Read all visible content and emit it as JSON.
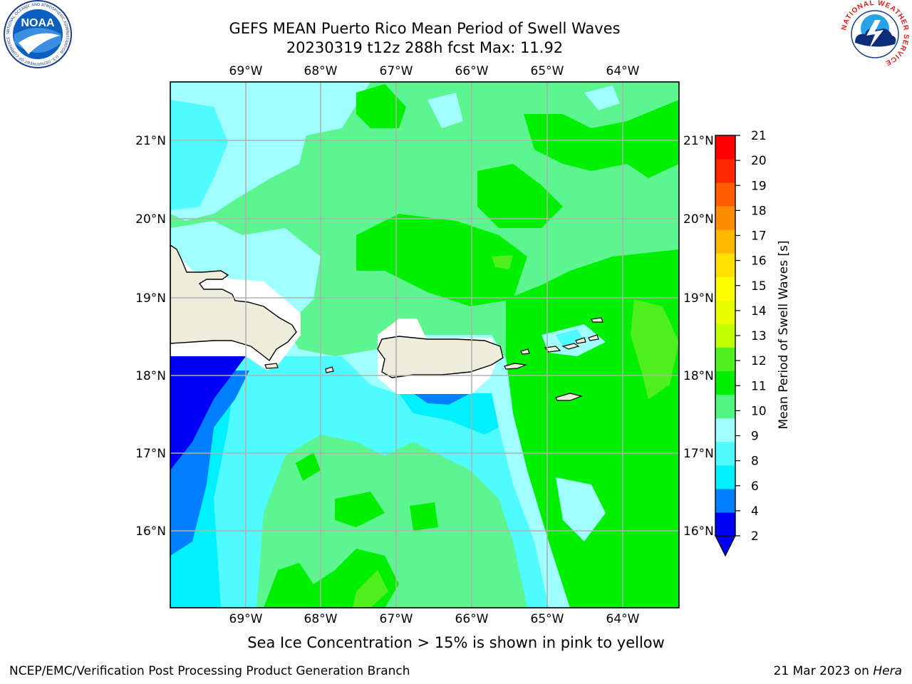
{
  "header": {
    "title_line1": "GEFS MEAN Puerto Rico Mean Period of Swell Waves",
    "title_line2": "20230319 t12z 288h fcst   Max: 11.92"
  },
  "logos": {
    "noaa_text": "NOAA",
    "noaa_ring": "NATIONAL OCEANIC AND ATMOSPHERIC ADMINISTRATION · U.S. DEPARTMENT OF COMMERCE",
    "nws_ring": "NATIONAL WEATHER SERVICE"
  },
  "map": {
    "lon_labels": [
      "69°W",
      "68°W",
      "67°W",
      "66°W",
      "65°W",
      "64°W"
    ],
    "lat_labels": [
      "21°N",
      "20°N",
      "19°N",
      "18°N",
      "17°N",
      "16°N"
    ],
    "colors": {
      "land": "#eeeddc",
      "coast": "#000000",
      "grid": "#b0b0b0",
      "ocean_base": "#5cf590"
    }
  },
  "colorbar": {
    "label": "Mean Period of Swell Waves [s]",
    "levels": [
      "2",
      "4",
      "6",
      "8",
      "9",
      "10",
      "11",
      "12",
      "13",
      "14",
      "15",
      "16",
      "17",
      "18",
      "19",
      "20",
      "21"
    ],
    "colors": [
      "#0000f5",
      "#0080ff",
      "#00f0ff",
      "#50fbff",
      "#a0ffff",
      "#50f580",
      "#00f000",
      "#50f020",
      "#c0ff00",
      "#e8ff00",
      "#ffff00",
      "#ffe000",
      "#ffb800",
      "#ff8c00",
      "#ff5c00",
      "#ff2800",
      "#ff0000"
    ],
    "extend_color": "#0000f5"
  },
  "caption": "Sea Ice Concentration > 15% is shown in pink to yellow",
  "footer": {
    "left": "NCEP/EMC/Verification Post Processing Product Generation Branch",
    "right_prefix": "21 Mar 2023 on ",
    "right_host": "Hera"
  }
}
